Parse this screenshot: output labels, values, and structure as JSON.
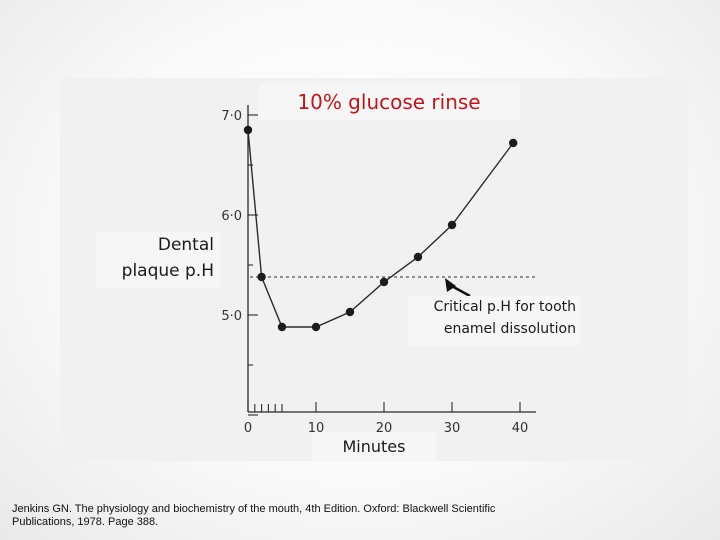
{
  "chart_data": {
    "type": "line",
    "title": "10% glucose rinse",
    "xlabel": "Minutes",
    "ylabel": "Dental plaque p.H",
    "xlim": [
      0,
      40
    ],
    "ylim": [
      4.0,
      7.0
    ],
    "x_ticks": [
      "0",
      "10",
      "20",
      "30",
      "40"
    ],
    "y_ticks": [
      "7·0",
      "6·0",
      "5·0"
    ],
    "series": [
      {
        "x": [
          0,
          2,
          5,
          10,
          15,
          20,
          25,
          30,
          39
        ],
        "y": [
          6.85,
          5.38,
          4.88,
          4.88,
          5.03,
          5.33,
          5.58,
          5.9,
          6.72
        ]
      }
    ],
    "reference_line": {
      "y": 5.38,
      "style": "dashed"
    },
    "annotation": "Critical p.H for tooth enamel dissolution",
    "annotation_lines": [
      "Critical p.H for tooth",
      "enamel dissolution"
    ],
    "grid": false
  },
  "citation": {
    "line1": "Jenkins GN. The physiology and biochemistry of the mouth, 4th Edition. Oxford: Blackwell Scientific",
    "line2": "Publications, 1978. Page 388."
  },
  "colors": {
    "title": "#c0161b",
    "ink": "#2b2b2b",
    "panel": "#f1f1f1"
  }
}
